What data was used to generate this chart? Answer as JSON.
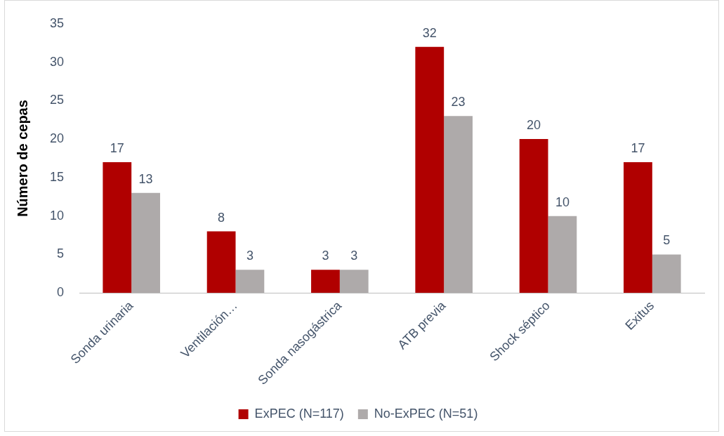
{
  "chart_data": {
    "type": "bar",
    "ylabel": "Número de cepas",
    "categories": [
      "Sonda urinaria",
      "Ventilación…",
      "Sonda nasogástrica",
      "ATB previa",
      "Shock séptico",
      "Exitus"
    ],
    "series": [
      {
        "name": "ExPEC (N=117)",
        "color": "#b00000",
        "values": [
          17,
          8,
          3,
          32,
          20,
          17
        ]
      },
      {
        "name": "No-ExPEC (N=51)",
        "color": "#aeaaaa",
        "values": [
          13,
          3,
          3,
          23,
          10,
          5
        ]
      }
    ],
    "ylim": [
      0,
      35
    ],
    "yticks": [
      0,
      5,
      10,
      15,
      20,
      25,
      30,
      35
    ],
    "grid": false,
    "legend": "bottom",
    "data_labels": true
  }
}
